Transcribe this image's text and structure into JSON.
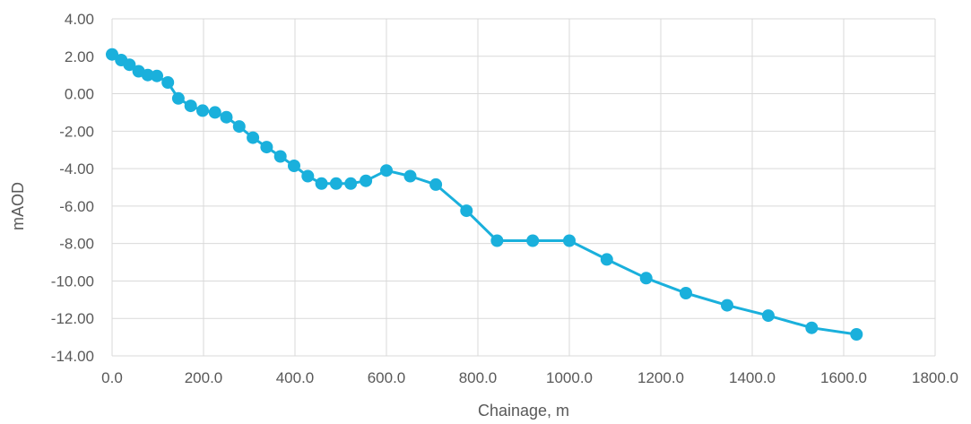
{
  "chart_data": {
    "type": "line",
    "title": "",
    "xlabel": "Chainage, m",
    "ylabel": "mAOD",
    "xlim": [
      0,
      1800
    ],
    "ylim": [
      -14,
      4
    ],
    "x_ticks": [
      0,
      200,
      400,
      600,
      800,
      1000,
      1200,
      1400,
      1600,
      1800
    ],
    "x_tick_labels": [
      "0.0",
      "200.0",
      "400.0",
      "600.0",
      "800.0",
      "1000.0",
      "1200.0",
      "1400.0",
      "1600.0",
      "1800.0"
    ],
    "y_ticks": [
      4,
      2,
      0,
      -2,
      -4,
      -6,
      -8,
      -10,
      -12,
      -14
    ],
    "y_tick_labels": [
      "4.00",
      "2.00",
      "0.00",
      "-2.00",
      "-4.00",
      "-6.00",
      "-8.00",
      "-10.00",
      "-12.00",
      "-14.00"
    ],
    "grid": true,
    "legend": "none",
    "series": [
      {
        "color": "#1ab0dc",
        "marker": "circle",
        "points": [
          [
            0,
            2.1
          ],
          [
            20,
            1.8
          ],
          [
            38,
            1.55
          ],
          [
            58,
            1.2
          ],
          [
            78,
            1.0
          ],
          [
            98,
            0.95
          ],
          [
            122,
            0.6
          ],
          [
            145,
            -0.25
          ],
          [
            172,
            -0.65
          ],
          [
            198,
            -0.9
          ],
          [
            225,
            -1.0
          ],
          [
            250,
            -1.25
          ],
          [
            278,
            -1.75
          ],
          [
            308,
            -2.35
          ],
          [
            338,
            -2.85
          ],
          [
            368,
            -3.35
          ],
          [
            398,
            -3.85
          ],
          [
            428,
            -4.4
          ],
          [
            458,
            -4.8
          ],
          [
            490,
            -4.8
          ],
          [
            522,
            -4.8
          ],
          [
            555,
            -4.65
          ],
          [
            600,
            -4.1
          ],
          [
            652,
            -4.4
          ],
          [
            708,
            -4.85
          ],
          [
            775,
            -6.25
          ],
          [
            842,
            -7.85
          ],
          [
            920,
            -7.85
          ],
          [
            1000,
            -7.85
          ],
          [
            1082,
            -8.85
          ],
          [
            1168,
            -9.85
          ],
          [
            1255,
            -10.65
          ],
          [
            1345,
            -11.3
          ],
          [
            1435,
            -11.85
          ],
          [
            1530,
            -12.5
          ],
          [
            1628,
            -12.85
          ]
        ]
      }
    ]
  }
}
